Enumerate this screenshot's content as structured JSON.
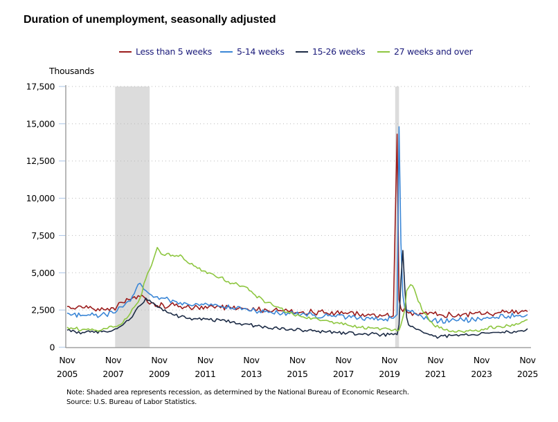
{
  "chart_data": {
    "type": "line",
    "title": "Duration of unemployment, seasonally adjusted",
    "ylabel": "Thousands",
    "xlabel": "",
    "ylim": [
      0,
      17500
    ],
    "yticks": [
      0,
      2500,
      5000,
      7500,
      10000,
      12500,
      15000,
      17500
    ],
    "ytick_labels": [
      "0",
      "2,500",
      "5,000",
      "7,500",
      "10,000",
      "12,500",
      "15,000",
      "17,500"
    ],
    "xlim": [
      "2005-11",
      "2025-11"
    ],
    "xticks": [
      {
        "month": "Nov",
        "year": "2005",
        "t": 2005.833
      },
      {
        "month": "Nov",
        "year": "2007",
        "t": 2007.833
      },
      {
        "month": "Nov",
        "year": "2009",
        "t": 2009.833
      },
      {
        "month": "Nov",
        "year": "2011",
        "t": 2011.833
      },
      {
        "month": "Nov",
        "year": "2013",
        "t": 2013.833
      },
      {
        "month": "Nov",
        "year": "2015",
        "t": 2015.833
      },
      {
        "month": "Nov",
        "year": "2017",
        "t": 2017.833
      },
      {
        "month": "Nov",
        "year": "2019",
        "t": 2019.833
      },
      {
        "month": "Nov",
        "year": "2021",
        "t": 2021.833
      },
      {
        "month": "Nov",
        "year": "2023",
        "t": 2023.833
      },
      {
        "month": "Nov",
        "year": "2025",
        "t": 2025.833
      }
    ],
    "grid": "horizontal-dotted",
    "legend_position": "top-center",
    "recessions": [
      {
        "start": 2007.917,
        "end": 2009.417,
        "label": "Dec 2007 - Jun 2009"
      },
      {
        "start": 2020.083,
        "end": 2020.25,
        "label": "Feb 2020 - Apr 2020"
      }
    ],
    "x": [
      2005.833,
      2006.0,
      2006.5,
      2007.0,
      2007.5,
      2007.833,
      2008.0,
      2008.25,
      2008.5,
      2008.75,
      2009.0,
      2009.25,
      2009.5,
      2009.75,
      2010.0,
      2010.25,
      2010.5,
      2010.75,
      2011.0,
      2011.5,
      2012.0,
      2012.5,
      2013.0,
      2013.5,
      2014.0,
      2014.5,
      2015.0,
      2015.5,
      2016.0,
      2016.5,
      2017.0,
      2017.5,
      2018.0,
      2018.5,
      2019.0,
      2019.5,
      2020.0,
      2020.167,
      2020.25,
      2020.333,
      2020.417,
      2020.5,
      2020.583,
      2020.667,
      2020.75,
      2020.917,
      2021.0,
      2021.25,
      2021.5,
      2021.75,
      2022.0,
      2022.5,
      2023.0,
      2023.5,
      2024.0,
      2024.5,
      2025.0,
      2025.5,
      2025.833
    ],
    "series": [
      {
        "name": "Less than 5 weeks",
        "color": "#9b1c1c",
        "values": [
          2750,
          2600,
          2650,
          2550,
          2500,
          2650,
          2750,
          3000,
          3200,
          3400,
          3400,
          3250,
          3000,
          2800,
          2850,
          2750,
          2800,
          2750,
          2700,
          2700,
          2750,
          2650,
          2600,
          2600,
          2500,
          2500,
          2450,
          2400,
          2350,
          2350,
          2300,
          2300,
          2250,
          2200,
          2150,
          2100,
          2100,
          14300,
          3200,
          2600,
          2400,
          2650,
          2400,
          2300,
          2350,
          2300,
          2250,
          2250,
          2200,
          2250,
          2200,
          2200,
          2200,
          2250,
          2250,
          2300,
          2300,
          2350,
          2400
        ]
      },
      {
        "name": "5-14 weeks",
        "color": "#3a86d6",
        "values": [
          2300,
          2150,
          2150,
          2150,
          2200,
          2300,
          2450,
          2700,
          3100,
          3600,
          4300,
          3800,
          3500,
          3400,
          3300,
          3200,
          3100,
          3000,
          2950,
          2900,
          2800,
          2750,
          2650,
          2600,
          2450,
          2450,
          2300,
          2250,
          2200,
          2150,
          2100,
          2050,
          2000,
          1950,
          1900,
          1900,
          1950,
          2200,
          14800,
          7000,
          3500,
          2600,
          2500,
          2450,
          2400,
          2300,
          2200,
          2050,
          1900,
          1850,
          1750,
          1800,
          1850,
          1850,
          1950,
          2000,
          2100,
          2150,
          2200
        ]
      },
      {
        "name": "15-26 weeks",
        "color": "#1b2a44",
        "values": [
          1150,
          1050,
          1000,
          1000,
          1050,
          1150,
          1250,
          1500,
          1800,
          2300,
          2800,
          3300,
          3000,
          2700,
          2450,
          2300,
          2150,
          2050,
          1950,
          1900,
          1850,
          1800,
          1700,
          1550,
          1450,
          1350,
          1250,
          1200,
          1150,
          1100,
          1050,
          1000,
          950,
          900,
          900,
          850,
          850,
          850,
          1500,
          4500,
          6500,
          4000,
          2000,
          1500,
          1400,
          1300,
          1200,
          1050,
          900,
          750,
          700,
          800,
          850,
          850,
          950,
          1000,
          1050,
          1100,
          1250
        ]
      },
      {
        "name": "27 weeks and over",
        "color": "#8dc63f",
        "values": [
          1350,
          1300,
          1200,
          1150,
          1250,
          1350,
          1400,
          1650,
          2100,
          2700,
          3300,
          4600,
          5500,
          6700,
          6200,
          6300,
          6100,
          6200,
          5800,
          5300,
          5000,
          4700,
          4300,
          4100,
          3500,
          3000,
          2700,
          2300,
          2050,
          1950,
          1800,
          1650,
          1500,
          1350,
          1300,
          1250,
          1150,
          1100,
          1150,
          1500,
          2000,
          2500,
          3800,
          4000,
          4200,
          3900,
          3500,
          2500,
          2000,
          1500,
          1300,
          1050,
          1050,
          1100,
          1250,
          1400,
          1450,
          1600,
          1850
        ]
      }
    ]
  },
  "legend": {
    "items": [
      {
        "label": "Less than 5 weeks",
        "color": "#9b1c1c"
      },
      {
        "label": "5-14 weeks",
        "color": "#3a86d6"
      },
      {
        "label": "15-26 weeks",
        "color": "#1b2a44"
      },
      {
        "label": "27 weeks and over",
        "color": "#8dc63f"
      }
    ]
  },
  "footer": {
    "note": "Note: Shaded area represents recession, as determined by the National Bureau of Economic Research.",
    "source": "Source: U.S. Bureau of Labor Statistics."
  }
}
